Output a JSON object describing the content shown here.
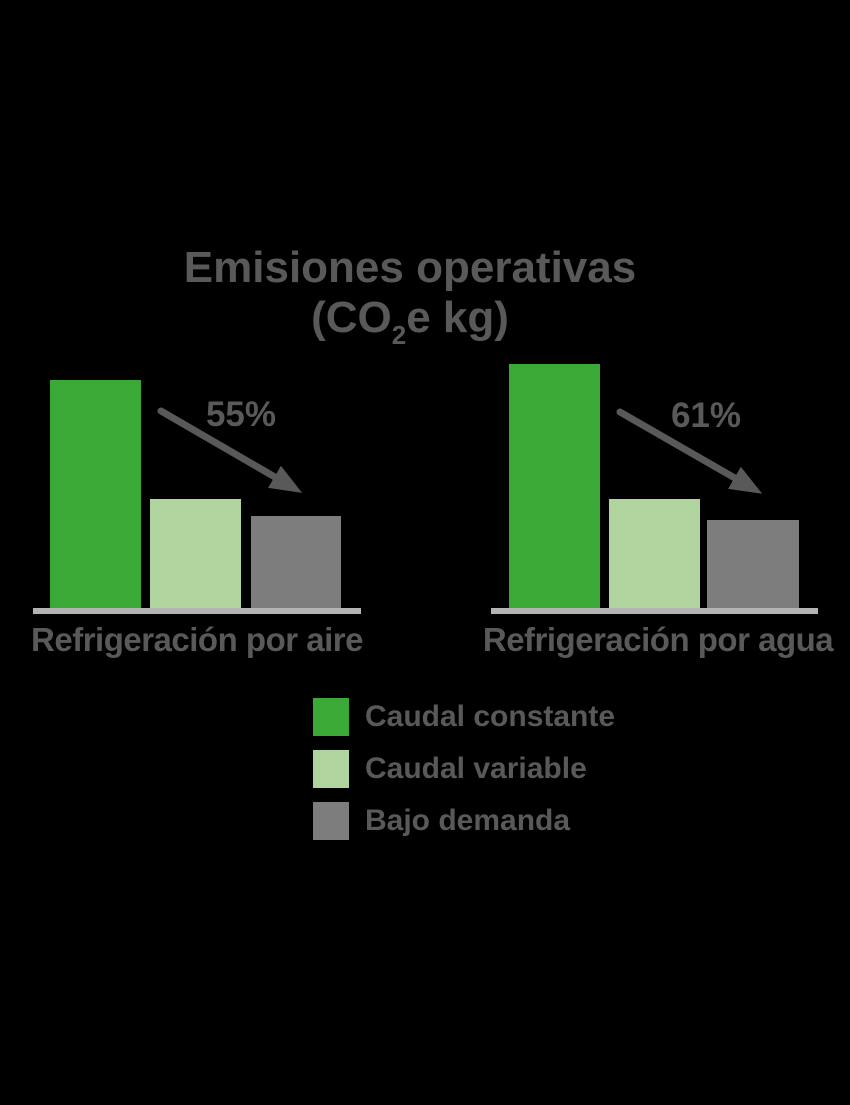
{
  "title": {
    "line1": "Emisiones operativas",
    "line2_prefix": "(CO",
    "line2_sub": "2",
    "line2_suffix": "e kg)"
  },
  "colors": {
    "background": "#000000",
    "text": "#595959",
    "axis_line": "#b3b3b3",
    "arrow": "#595959",
    "green": "#3aa935",
    "light_green": "#b0d49e",
    "gray": "#7d7d7d"
  },
  "chart_data": {
    "type": "bar",
    "title": "Emisiones operativas (CO2e kg)",
    "groups": [
      "Refrigeración por aire",
      "Refrigeración por agua"
    ],
    "categories": [
      "Caudal constante",
      "Caudal variable",
      "Bajo demanda"
    ],
    "series": [
      {
        "name": "Caudal constante",
        "color": "#3aa935",
        "values": [
          228,
          244
        ]
      },
      {
        "name": "Caudal variable",
        "color": "#b0d49e",
        "values": [
          109,
          109
        ]
      },
      {
        "name": "Bajo demanda",
        "color": "#7d7d7d",
        "values": [
          92,
          88
        ]
      }
    ],
    "value_unit": "relative bar height in px (no numeric value axis shown)",
    "annotations": [
      {
        "group": "Refrigeración por aire",
        "label": "55%",
        "meaning": "decrease arrow from tallest bar"
      },
      {
        "group": "Refrigeración por agua",
        "label": "61%",
        "meaning": "decrease arrow from tallest bar"
      }
    ],
    "axis": "baseline only, no ticks or gridlines",
    "legend_position": "bottom-center"
  }
}
